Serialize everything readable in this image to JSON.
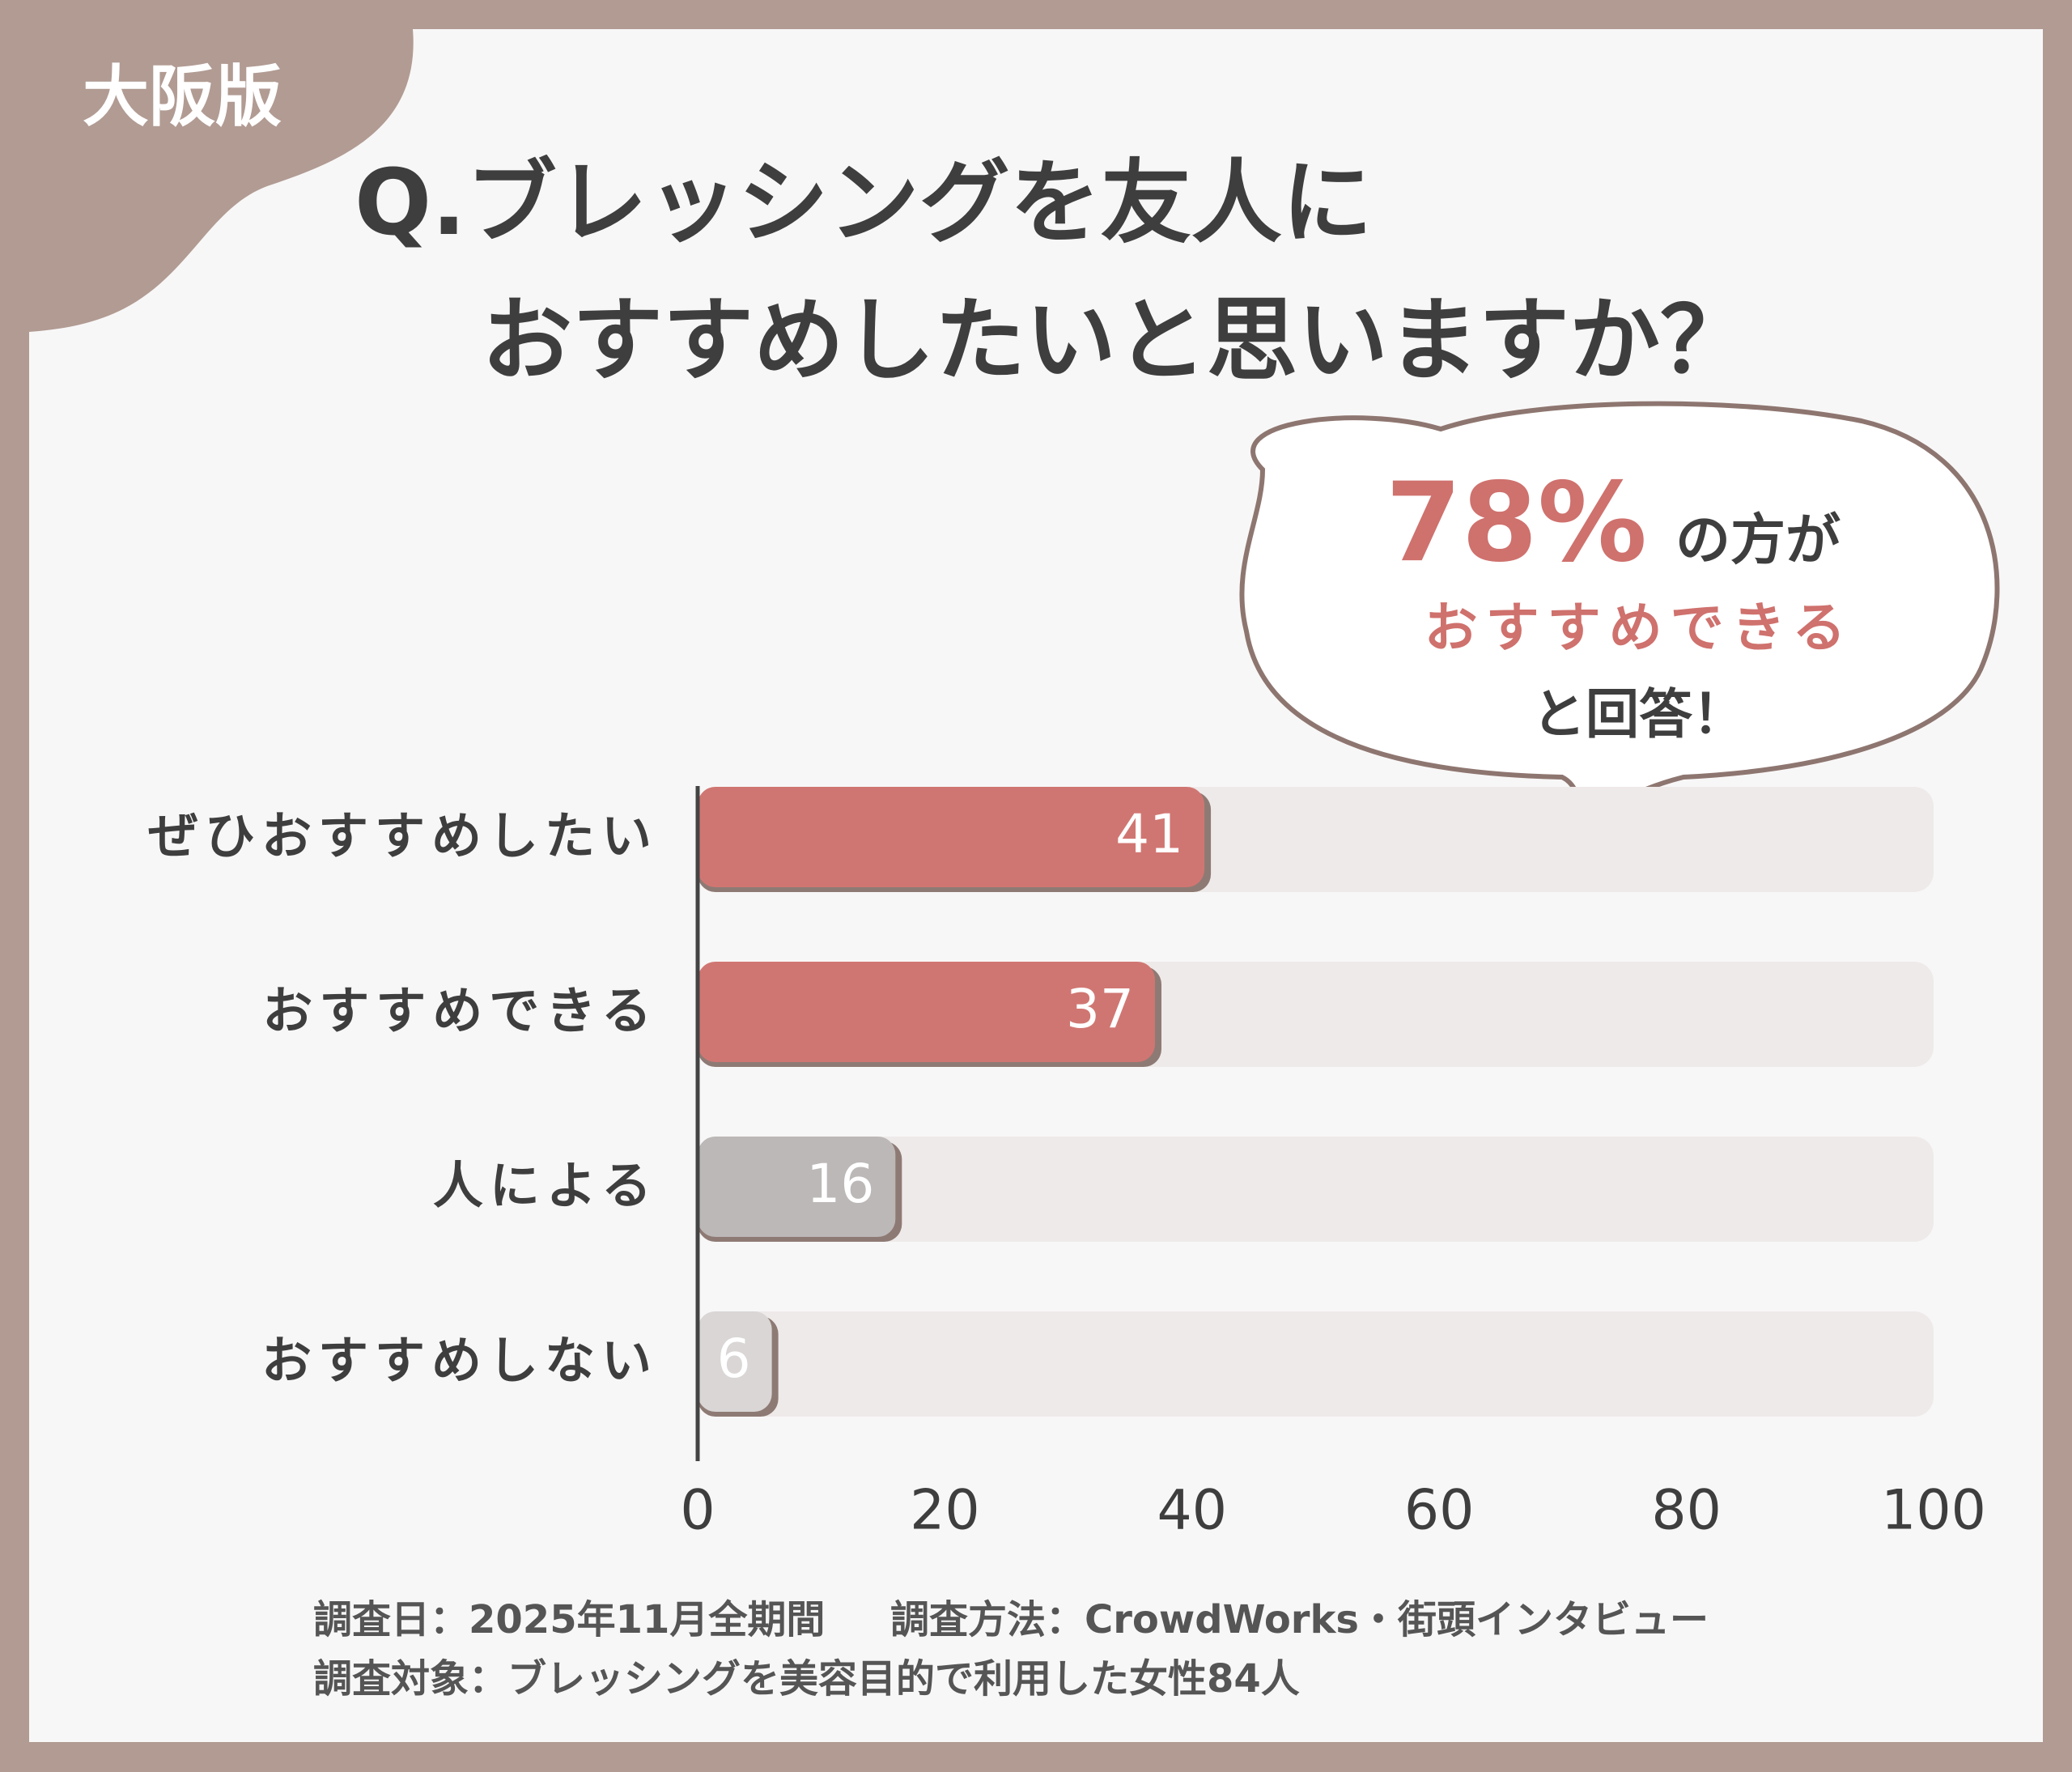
{
  "badge": "大阪版",
  "chart_data": {
    "type": "bar",
    "orientation": "horizontal",
    "title": [
      "Q.ブレッシングを友人に",
      "おすすめしたいと思いますか？"
    ],
    "categories": [
      "ぜひおすすめしたい",
      "おすすめできる",
      "人による",
      "おすすめしない"
    ],
    "values": [
      41,
      37,
      16,
      6
    ],
    "colors": [
      "#d07672",
      "#d07672",
      "#bcb8b7",
      "#d9d6d5"
    ],
    "xlim": [
      0,
      100
    ],
    "xticks": [
      0,
      20,
      40,
      60,
      80,
      100
    ],
    "callout": [
      "78%",
      "の方が",
      "おすすめできる",
      "と回答！"
    ],
    "notes": [
      "調査日：2025年11月全期間",
      "調査方法：CrowdWorks・街頭インタビュー",
      "調査対象：ブレッシングを美容目的で利用した女性84人"
    ]
  }
}
